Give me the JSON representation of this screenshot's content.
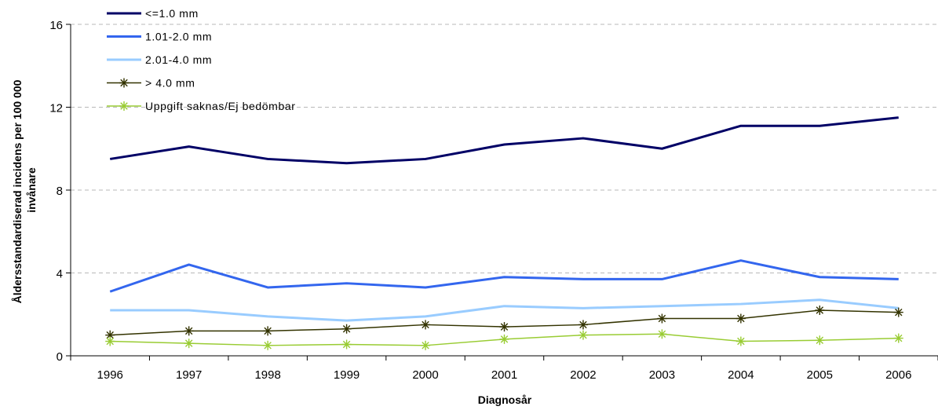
{
  "chart_data": {
    "type": "line",
    "title": "",
    "xlabel": "Diagnosår",
    "ylabel_line1": "Åldersstandardiserad incidens per 100 000",
    "ylabel_line2": "invånare",
    "categories": [
      "1996",
      "1997",
      "1998",
      "1999",
      "2000",
      "2001",
      "2002",
      "2003",
      "2004",
      "2005",
      "2006"
    ],
    "ylim": [
      0,
      16
    ],
    "yticks": [
      "0",
      "4",
      "8",
      "12",
      "16"
    ],
    "grid": "horizontal-dashed",
    "legend_position": "top-left",
    "series": [
      {
        "name": "<=1.0 mm",
        "color": "#000066",
        "marker": "none",
        "values": [
          9.5,
          10.1,
          9.5,
          9.3,
          9.5,
          10.2,
          10.5,
          10.0,
          11.1,
          11.1,
          11.5
        ]
      },
      {
        "name": "1.01-2.0 mm",
        "color": "#3366ee",
        "marker": "none",
        "values": [
          3.1,
          4.4,
          3.3,
          3.5,
          3.3,
          3.8,
          3.7,
          3.7,
          4.6,
          3.8,
          3.7
        ]
      },
      {
        "name": "2.01-4.0 mm",
        "color": "#99ccff",
        "marker": "none",
        "values": [
          2.2,
          2.2,
          1.9,
          1.7,
          1.9,
          2.4,
          2.3,
          2.4,
          2.5,
          2.7,
          2.3
        ]
      },
      {
        "name": "> 4.0 mm",
        "color": "#333300",
        "marker": "asterisk",
        "values": [
          1.0,
          1.2,
          1.2,
          1.3,
          1.5,
          1.4,
          1.5,
          1.8,
          1.8,
          2.2,
          2.1
        ]
      },
      {
        "name": "Uppgift saknas/Ej bedömbar",
        "color": "#99cc33",
        "marker": "asterisk",
        "values": [
          0.7,
          0.6,
          0.5,
          0.55,
          0.5,
          0.8,
          1.0,
          1.05,
          0.7,
          0.75,
          0.85
        ]
      }
    ]
  }
}
